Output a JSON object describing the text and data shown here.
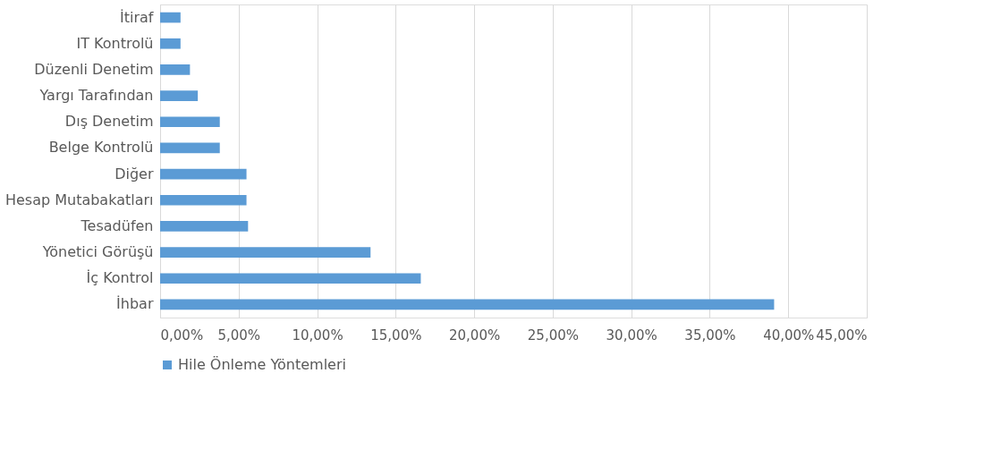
{
  "chart_data": {
    "type": "bar",
    "orientation": "horizontal",
    "categories": [
      "İtiraf",
      "IT Kontrolü",
      "Düzenli Denetim",
      "Yargı  Tarafından",
      "Dış Denetim",
      "Belge Kontrolü",
      "Diğer",
      "Hesap Mutabakatları",
      "Tesadüfen",
      "Yönetici Görüşü",
      "İç Kontrol",
      "İhbar"
    ],
    "series": [
      {
        "name": "Hile Önleme Yöntemleri",
        "color": "#5b9bd5",
        "values": [
          1.3,
          1.3,
          1.9,
          2.4,
          3.8,
          3.8,
          5.5,
          5.5,
          5.6,
          13.4,
          16.6,
          39.1
        ]
      }
    ],
    "xlim": [
      0,
      45
    ],
    "xticks": [
      {
        "value": 0,
        "label": "0,00%"
      },
      {
        "value": 5,
        "label": "5,00%"
      },
      {
        "value": 10,
        "label": "10,00%"
      },
      {
        "value": 15,
        "label": "15,00%"
      },
      {
        "value": 20,
        "label": "20,00%"
      },
      {
        "value": 25,
        "label": "25,00%"
      },
      {
        "value": 30,
        "label": "30,00%"
      },
      {
        "value": 35,
        "label": "35,00%"
      },
      {
        "value": 40,
        "label": "40,00%"
      },
      {
        "value": 45,
        "label": "45,00%"
      }
    ],
    "grid": "x",
    "legend": "bottom"
  }
}
